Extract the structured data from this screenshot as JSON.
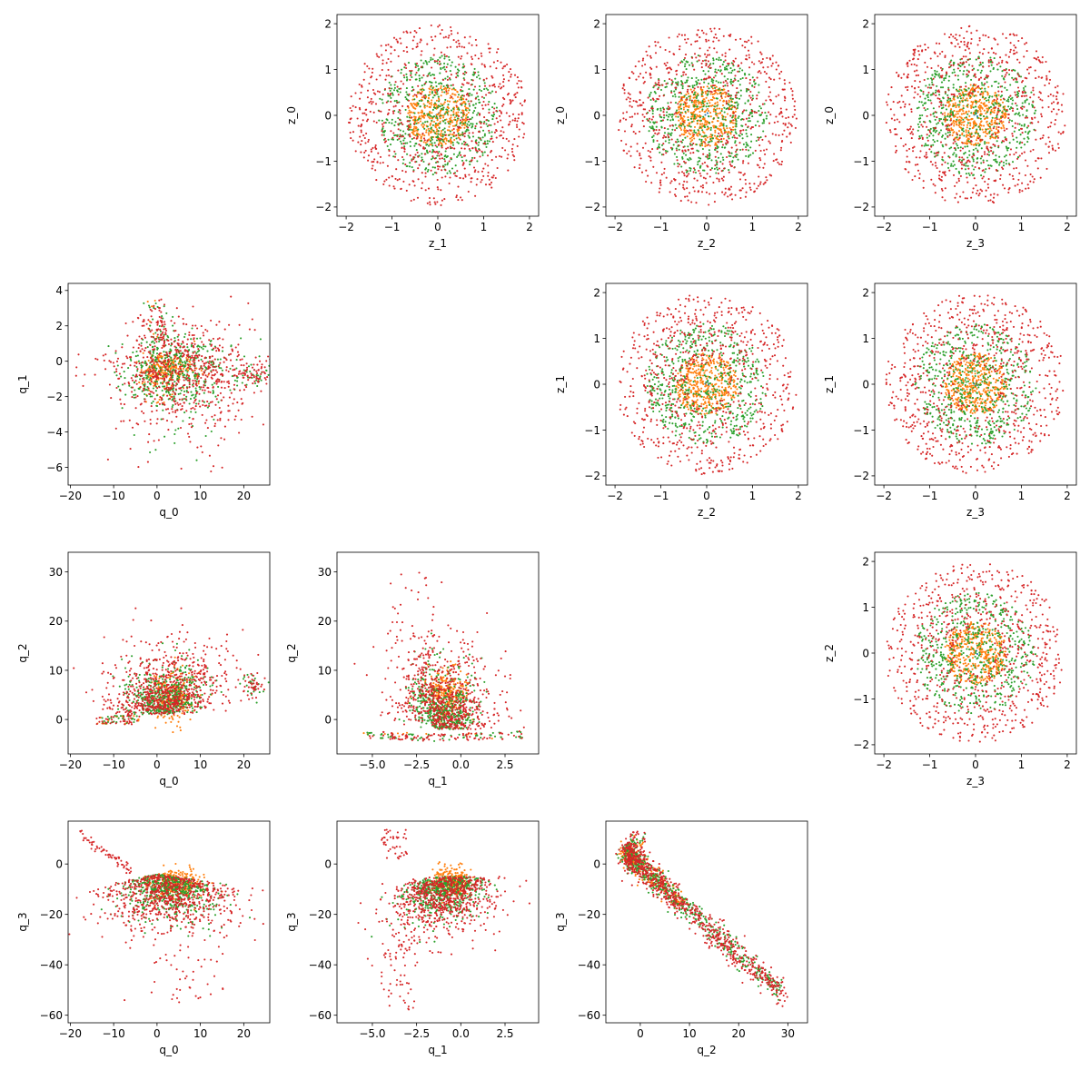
{
  "figure": {
    "background": "#ffffff"
  },
  "colors": {
    "blue": "#1f77b4",
    "orange": "#ff7f0e",
    "green": "#2ca02c",
    "red": "#d62728"
  },
  "chart_data": [
    {
      "type": "scatter",
      "name": "z1-z0",
      "row": 0,
      "col": 1,
      "dist": "disk",
      "xlabel": "z_1",
      "ylabel": "z_0",
      "xlim": [
        -2.2,
        2.2
      ],
      "ylim": [
        -2.2,
        2.2
      ],
      "xticks": [
        -2,
        -1,
        0,
        1,
        2
      ],
      "yticks": [
        -2,
        -1,
        0,
        1,
        2
      ],
      "xtick_labels": [
        "−2",
        "−1",
        "0",
        "1",
        "2"
      ],
      "ytick_labels": [
        "−2",
        "−1",
        "0",
        "1",
        "2"
      ]
    },
    {
      "type": "scatter",
      "name": "z2-z0",
      "row": 0,
      "col": 2,
      "dist": "disk",
      "xlabel": "z_2",
      "ylabel": "z_0",
      "xlim": [
        -2.2,
        2.2
      ],
      "ylim": [
        -2.2,
        2.2
      ],
      "xticks": [
        -2,
        -1,
        0,
        1,
        2
      ],
      "yticks": [
        -2,
        -1,
        0,
        1,
        2
      ],
      "xtick_labels": [
        "−2",
        "−1",
        "0",
        "1",
        "2"
      ],
      "ytick_labels": [
        "−2",
        "−1",
        "0",
        "1",
        "2"
      ]
    },
    {
      "type": "scatter",
      "name": "z3-z0",
      "row": 0,
      "col": 3,
      "dist": "disk",
      "xlabel": "z_3",
      "ylabel": "z_0",
      "xlim": [
        -2.2,
        2.2
      ],
      "ylim": [
        -2.2,
        2.2
      ],
      "xticks": [
        -2,
        -1,
        0,
        1,
        2
      ],
      "yticks": [
        -2,
        -1,
        0,
        1,
        2
      ],
      "xtick_labels": [
        "−2",
        "−1",
        "0",
        "1",
        "2"
      ],
      "ytick_labels": [
        "−2",
        "−1",
        "0",
        "1",
        "2"
      ]
    },
    {
      "type": "scatter",
      "name": "q0-q1",
      "row": 1,
      "col": 0,
      "dist": "q01",
      "xlabel": "q_0",
      "ylabel": "q_1",
      "xlim": [
        -20.5,
        26
      ],
      "ylim": [
        -7,
        4.4
      ],
      "xticks": [
        -20,
        -10,
        0,
        10,
        20
      ],
      "yticks": [
        -6,
        -4,
        -2,
        0,
        2,
        4
      ],
      "xtick_labels": [
        "−20",
        "−10",
        "0",
        "10",
        "20"
      ],
      "ytick_labels": [
        "−6",
        "−4",
        "−2",
        "0",
        "2",
        "4"
      ]
    },
    {
      "type": "scatter",
      "name": "z2-z1",
      "row": 1,
      "col": 2,
      "dist": "disk",
      "xlabel": "z_2",
      "ylabel": "z_1",
      "xlim": [
        -2.2,
        2.2
      ],
      "ylim": [
        -2.2,
        2.2
      ],
      "xticks": [
        -2,
        -1,
        0,
        1,
        2
      ],
      "yticks": [
        -2,
        -1,
        0,
        1,
        2
      ],
      "xtick_labels": [
        "−2",
        "−1",
        "0",
        "1",
        "2"
      ],
      "ytick_labels": [
        "−2",
        "−1",
        "0",
        "1",
        "2"
      ]
    },
    {
      "type": "scatter",
      "name": "z3-z1",
      "row": 1,
      "col": 3,
      "dist": "disk",
      "xlabel": "z_3",
      "ylabel": "z_1",
      "xlim": [
        -2.2,
        2.2
      ],
      "ylim": [
        -2.2,
        2.2
      ],
      "xticks": [
        -2,
        -1,
        0,
        1,
        2
      ],
      "yticks": [
        -2,
        -1,
        0,
        1,
        2
      ],
      "xtick_labels": [
        "−2",
        "−1",
        "0",
        "1",
        "2"
      ],
      "ytick_labels": [
        "−2",
        "−1",
        "0",
        "1",
        "2"
      ]
    },
    {
      "type": "scatter",
      "name": "q0-q2",
      "row": 2,
      "col": 0,
      "dist": "q02",
      "xlabel": "q_0",
      "ylabel": "q_2",
      "xlim": [
        -20.5,
        26
      ],
      "ylim": [
        -7,
        34
      ],
      "xticks": [
        -20,
        -10,
        0,
        10,
        20
      ],
      "yticks": [
        0,
        10,
        20,
        30
      ],
      "xtick_labels": [
        "−20",
        "−10",
        "0",
        "10",
        "20"
      ],
      "ytick_labels": [
        "0",
        "10",
        "20",
        "30"
      ]
    },
    {
      "type": "scatter",
      "name": "q1-q2",
      "row": 2,
      "col": 1,
      "dist": "q12",
      "xlabel": "q_1",
      "ylabel": "q_2",
      "xlim": [
        -7,
        4.4
      ],
      "ylim": [
        -7,
        34
      ],
      "xticks": [
        -5,
        -2.5,
        0,
        2.5
      ],
      "yticks": [
        0,
        10,
        20,
        30
      ],
      "xtick_labels": [
        "−5.0",
        "−2.5",
        "0.0",
        "2.5"
      ],
      "ytick_labels": [
        "0",
        "10",
        "20",
        "30"
      ]
    },
    {
      "type": "scatter",
      "name": "z3-z2",
      "row": 2,
      "col": 3,
      "dist": "disk",
      "xlabel": "z_3",
      "ylabel": "z_2",
      "xlim": [
        -2.2,
        2.2
      ],
      "ylim": [
        -2.2,
        2.2
      ],
      "xticks": [
        -2,
        -1,
        0,
        1,
        2
      ],
      "yticks": [
        -2,
        -1,
        0,
        1,
        2
      ],
      "xtick_labels": [
        "−2",
        "−1",
        "0",
        "1",
        "2"
      ],
      "ytick_labels": [
        "−2",
        "−1",
        "0",
        "1",
        "2"
      ]
    },
    {
      "type": "scatter",
      "name": "q0-q3",
      "row": 3,
      "col": 0,
      "dist": "q03",
      "xlabel": "q_0",
      "ylabel": "q_3",
      "xlim": [
        -20.5,
        26
      ],
      "ylim": [
        -63,
        17
      ],
      "xticks": [
        -20,
        -10,
        0,
        10,
        20
      ],
      "yticks": [
        -60,
        -40,
        -20,
        0
      ],
      "xtick_labels": [
        "−20",
        "−10",
        "0",
        "10",
        "20"
      ],
      "ytick_labels": [
        "−60",
        "−40",
        "−20",
        "0"
      ]
    },
    {
      "type": "scatter",
      "name": "q1-q3",
      "row": 3,
      "col": 1,
      "dist": "q13",
      "xlabel": "q_1",
      "ylabel": "q_3",
      "xlim": [
        -7,
        4.4
      ],
      "ylim": [
        -63,
        17
      ],
      "xticks": [
        -5,
        -2.5,
        0,
        2.5
      ],
      "yticks": [
        -60,
        -40,
        -20,
        0
      ],
      "xtick_labels": [
        "−5.0",
        "−2.5",
        "0.0",
        "2.5"
      ],
      "ytick_labels": [
        "−60",
        "−40",
        "−20",
        "0"
      ]
    },
    {
      "type": "scatter",
      "name": "q2-q3",
      "row": 3,
      "col": 2,
      "dist": "q23",
      "xlabel": "q_2",
      "ylabel": "q_3",
      "xlim": [
        -7,
        34
      ],
      "ylim": [
        -63,
        17
      ],
      "xticks": [
        0,
        10,
        20,
        30
      ],
      "yticks": [
        -60,
        -40,
        -20,
        0
      ],
      "xtick_labels": [
        "0",
        "10",
        "20",
        "30"
      ],
      "ytick_labels": [
        "−60",
        "−40",
        "−20",
        "0"
      ]
    }
  ]
}
